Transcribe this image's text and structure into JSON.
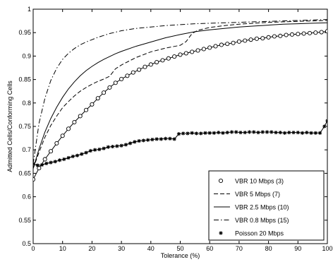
{
  "chart_data": {
    "type": "line",
    "title": "",
    "xlabel": "Tolerance (%)",
    "ylabel": "Admitted Cells/Conforming Cells",
    "xlim": [
      0,
      100
    ],
    "ylim": [
      0.5,
      1
    ],
    "xticks": [
      0,
      10,
      20,
      30,
      40,
      50,
      60,
      70,
      80,
      90,
      100
    ],
    "yticks": [
      0.5,
      0.55,
      0.6,
      0.65,
      0.7,
      0.75,
      0.8,
      0.85,
      0.9,
      0.95,
      1
    ],
    "xtick_labels": [
      "0",
      "10",
      "20",
      "30",
      "40",
      "50",
      "60",
      "70",
      "80",
      "90",
      "100"
    ],
    "ytick_labels": [
      "0.5",
      "0.55",
      "0.6",
      "0.65",
      "0.7",
      "0.75",
      "0.8",
      "0.85",
      "0.9",
      "0.95",
      "1"
    ],
    "grid": false,
    "legend_position": "lower-right",
    "series": [
      {
        "name": "VBR 10 Mbps (3)",
        "style": "circle-markers",
        "x": [
          0,
          2,
          4,
          6,
          8,
          10,
          12,
          14,
          16,
          18,
          20,
          22,
          24,
          26,
          28,
          30,
          32,
          34,
          36,
          38,
          40,
          42,
          44,
          46,
          48,
          50,
          52,
          54,
          56,
          58,
          60,
          62,
          64,
          66,
          68,
          70,
          72,
          74,
          76,
          78,
          80,
          82,
          84,
          86,
          88,
          90,
          92,
          94,
          96,
          98,
          100
        ],
        "y": [
          0.637,
          0.661,
          0.68,
          0.697,
          0.714,
          0.73,
          0.745,
          0.759,
          0.772,
          0.785,
          0.797,
          0.81,
          0.822,
          0.833,
          0.843,
          0.851,
          0.858,
          0.865,
          0.871,
          0.877,
          0.882,
          0.887,
          0.891,
          0.895,
          0.899,
          0.903,
          0.906,
          0.909,
          0.912,
          0.915,
          0.918,
          0.921,
          0.924,
          0.926,
          0.928,
          0.931,
          0.933,
          0.935,
          0.937,
          0.938,
          0.94,
          0.942,
          0.943,
          0.945,
          0.946,
          0.947,
          0.948,
          0.949,
          0.95,
          0.951,
          0.953
        ]
      },
      {
        "name": "VBR 5 Mbps (7)",
        "style": "dashed",
        "x": [
          0,
          2,
          4,
          6,
          8,
          10,
          12,
          14,
          16,
          18,
          20,
          22,
          24,
          26,
          28,
          30,
          35,
          40,
          45,
          50,
          52,
          54,
          56,
          58,
          60,
          65,
          70,
          75,
          80,
          85,
          90,
          95,
          100
        ],
        "y": [
          0.66,
          0.695,
          0.727,
          0.752,
          0.772,
          0.79,
          0.803,
          0.815,
          0.825,
          0.833,
          0.84,
          0.846,
          0.851,
          0.857,
          0.873,
          0.881,
          0.897,
          0.909,
          0.917,
          0.923,
          0.931,
          0.948,
          0.955,
          0.958,
          0.961,
          0.965,
          0.968,
          0.97,
          0.972,
          0.973,
          0.974,
          0.975,
          0.976
        ]
      },
      {
        "name": "VBR 2.5 Mbps (10)",
        "style": "solid",
        "x": [
          0,
          2,
          4,
          6,
          8,
          10,
          12,
          14,
          16,
          18,
          20,
          22,
          24,
          26,
          28,
          30,
          35,
          40,
          45,
          50,
          55,
          60,
          65,
          70,
          75,
          80,
          85,
          90,
          95,
          100
        ],
        "y": [
          0.66,
          0.702,
          0.738,
          0.767,
          0.791,
          0.812,
          0.83,
          0.845,
          0.858,
          0.869,
          0.878,
          0.886,
          0.893,
          0.899,
          0.905,
          0.91,
          0.921,
          0.93,
          0.939,
          0.946,
          0.952,
          0.956,
          0.959,
          0.962,
          0.964,
          0.966,
          0.968,
          0.969,
          0.97,
          0.971
        ]
      },
      {
        "name": "VBR 0.8 Mbps (15)",
        "style": "dash-dot",
        "x": [
          0,
          2,
          4,
          6,
          8,
          10,
          12,
          14,
          16,
          18,
          20,
          22,
          24,
          26,
          28,
          30,
          35,
          40,
          45,
          50,
          55,
          60,
          65,
          70,
          75,
          80,
          85,
          90,
          95,
          100
        ],
        "y": [
          0.67,
          0.757,
          0.81,
          0.848,
          0.874,
          0.893,
          0.906,
          0.916,
          0.924,
          0.93,
          0.935,
          0.94,
          0.944,
          0.948,
          0.951,
          0.954,
          0.959,
          0.962,
          0.965,
          0.967,
          0.969,
          0.97,
          0.971,
          0.972,
          0.973,
          0.974,
          0.975,
          0.976,
          0.977,
          0.978
        ]
      },
      {
        "name": "Poisson 20 Mbps",
        "style": "star-markers",
        "x": [
          0,
          1.5,
          3,
          4.5,
          6,
          7.5,
          9,
          10.5,
          12,
          13.5,
          15,
          16.5,
          18,
          19.5,
          21,
          22.5,
          24,
          25.5,
          27,
          28.5,
          30,
          31.5,
          33,
          34.5,
          36,
          37.5,
          39,
          40.5,
          42,
          43.5,
          45,
          46.5,
          48,
          49.5,
          51,
          52.5,
          54,
          55.5,
          57,
          58.5,
          60,
          61.5,
          63,
          64.5,
          66,
          67.5,
          69,
          70.5,
          72,
          73.5,
          75,
          76.5,
          78,
          79.5,
          81,
          82.5,
          84,
          85.5,
          87,
          88.5,
          90,
          91.5,
          93,
          94.5,
          96,
          97.5,
          99,
          100
        ],
        "y": [
          0.67,
          0.667,
          0.668,
          0.671,
          0.673,
          0.675,
          0.678,
          0.68,
          0.683,
          0.686,
          0.688,
          0.691,
          0.694,
          0.698,
          0.7,
          0.701,
          0.703,
          0.706,
          0.707,
          0.708,
          0.709,
          0.711,
          0.714,
          0.717,
          0.719,
          0.72,
          0.721,
          0.722,
          0.723,
          0.723,
          0.724,
          0.724,
          0.723,
          0.734,
          0.735,
          0.735,
          0.736,
          0.735,
          0.735,
          0.736,
          0.736,
          0.736,
          0.737,
          0.736,
          0.737,
          0.738,
          0.738,
          0.737,
          0.737,
          0.738,
          0.738,
          0.737,
          0.738,
          0.738,
          0.738,
          0.737,
          0.737,
          0.736,
          0.737,
          0.737,
          0.737,
          0.736,
          0.737,
          0.736,
          0.736,
          0.736,
          0.75,
          0.762
        ]
      }
    ]
  }
}
